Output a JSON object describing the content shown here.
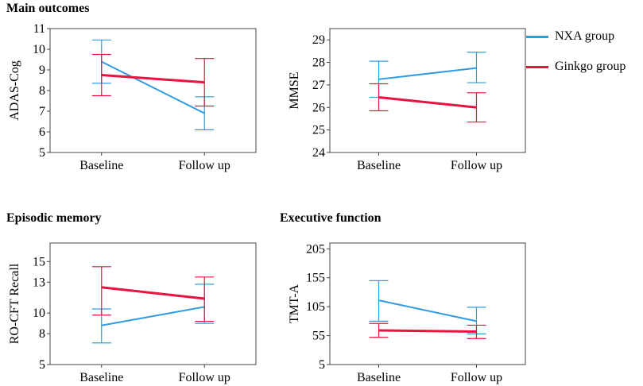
{
  "section_titles": {
    "main": "Main outcomes",
    "episodic": "Episodic memory",
    "executive": "Executive function"
  },
  "legend": [
    {
      "label": "NXA group",
      "color": "#2E9BE3"
    },
    {
      "label": "Ginkgo group",
      "color": "#E8133F"
    }
  ],
  "chart_data": [
    {
      "type": "line",
      "title": "",
      "ylabel": "ADAS-Cog",
      "categories": [
        "Baseline",
        "Follow up"
      ],
      "ylim": [
        5,
        11
      ],
      "yticks": [
        5,
        6,
        7,
        8,
        9,
        10,
        11
      ],
      "series": [
        {
          "name": "NXA group",
          "color": "#2E9BE3",
          "values": [
            9.4,
            6.9
          ],
          "lower": [
            8.35,
            6.1
          ],
          "upper": [
            10.45,
            7.7
          ]
        },
        {
          "name": "Ginkgo group",
          "color": "#E8133F",
          "values": [
            8.75,
            8.4
          ],
          "lower": [
            7.75,
            7.25
          ],
          "upper": [
            9.75,
            9.55
          ]
        }
      ]
    },
    {
      "type": "line",
      "title": "",
      "ylabel": "MMSE",
      "categories": [
        "Baseline",
        "Follow up"
      ],
      "ylim": [
        24,
        29.5
      ],
      "yticks": [
        24,
        25,
        26,
        27,
        28,
        29
      ],
      "series": [
        {
          "name": "NXA group",
          "color": "#2E9BE3",
          "values": [
            27.25,
            27.75
          ],
          "lower": [
            26.45,
            27.1
          ],
          "upper": [
            28.05,
            28.45
          ]
        },
        {
          "name": "Ginkgo group",
          "color": "#E8133F",
          "values": [
            26.45,
            26.0
          ],
          "lower": [
            25.85,
            25.35
          ],
          "upper": [
            27.05,
            26.65
          ]
        }
      ]
    },
    {
      "type": "line",
      "title": "",
      "ylabel": "RO-CFT Recall",
      "categories": [
        "Baseline",
        "Follow up"
      ],
      "ylim": [
        5,
        16.8
      ],
      "yticks": [
        5,
        8,
        10,
        13,
        15
      ],
      "series": [
        {
          "name": "NXA group",
          "color": "#2E9BE3",
          "values": [
            8.8,
            10.6
          ],
          "lower": [
            7.1,
            9.0
          ],
          "upper": [
            10.4,
            12.8
          ]
        },
        {
          "name": "Ginkgo group",
          "color": "#E8133F",
          "values": [
            12.5,
            11.4
          ],
          "lower": [
            9.8,
            9.2
          ],
          "upper": [
            14.5,
            13.5
          ]
        }
      ]
    },
    {
      "type": "line",
      "title": "",
      "ylabel": "TMT-A",
      "categories": [
        "Baseline",
        "Follow up"
      ],
      "ylim": [
        5,
        215
      ],
      "yticks": [
        5,
        55,
        105,
        155,
        205
      ],
      "series": [
        {
          "name": "NXA group",
          "color": "#2E9BE3",
          "values": [
            116,
            80
          ],
          "lower": [
            80,
            58
          ],
          "upper": [
            150,
            104
          ]
        },
        {
          "name": "Ginkgo group",
          "color": "#E8133F",
          "values": [
            64,
            62
          ],
          "lower": [
            52,
            50
          ],
          "upper": [
            76,
            73
          ]
        }
      ]
    }
  ]
}
